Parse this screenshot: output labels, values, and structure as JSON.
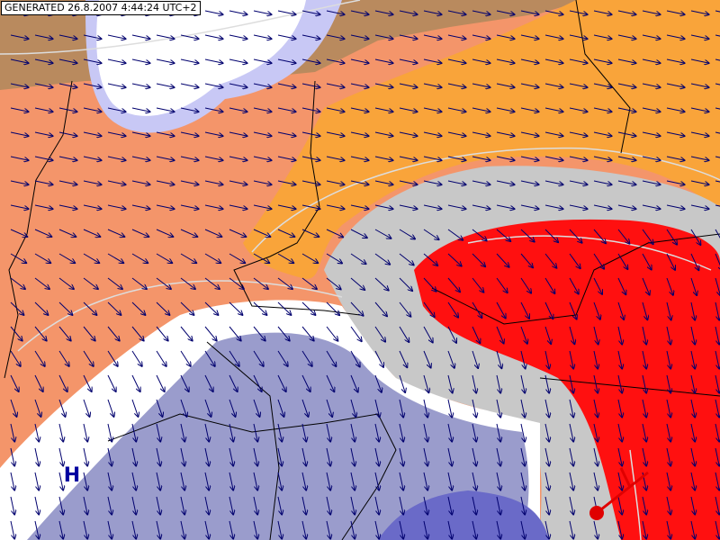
{
  "header": {
    "generated": "GENERATED 26.8.2007 4:44:24 UTC+2"
  },
  "labels": {
    "high": "H"
  }
}
